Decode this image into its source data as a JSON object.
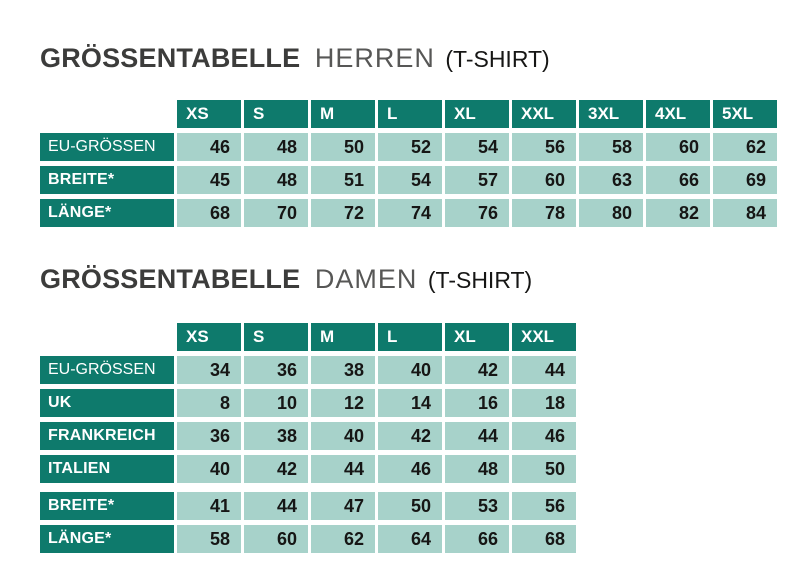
{
  "colors": {
    "header_bg": "#0e7a6c",
    "cell_bg": "#a7d2ca",
    "label_text": "#ffffff",
    "value_text": "#161615",
    "title_bold": "#3c3c3b",
    "title_light": "#575756",
    "title_suffix": "#161615"
  },
  "tables": [
    {
      "title": {
        "bold": "GRÖSSENTABELLE",
        "light": "HERREN",
        "suffix": "(T-SHIRT)"
      },
      "columns": [
        "XS",
        "S",
        "M",
        "L",
        "XL",
        "XXL",
        "3XL",
        "4XL",
        "5XL"
      ],
      "rows": [
        {
          "label": "EU-GRÖSSEN",
          "values": [
            "46",
            "48",
            "50",
            "52",
            "54",
            "56",
            "58",
            "60",
            "62"
          ]
        },
        {
          "label": "BREITE*",
          "values": [
            "45",
            "48",
            "51",
            "54",
            "57",
            "60",
            "63",
            "66",
            "69"
          ]
        },
        {
          "label": "LÄNGE*",
          "values": [
            "68",
            "70",
            "72",
            "74",
            "76",
            "78",
            "80",
            "82",
            "84"
          ]
        }
      ]
    },
    {
      "title": {
        "bold": "GRÖSSENTABELLE",
        "light": "DAMEN",
        "suffix": "(T-SHIRT)"
      },
      "columns": [
        "XS",
        "S",
        "M",
        "L",
        "XL",
        "XXL"
      ],
      "rows": [
        {
          "label": "EU-GRÖSSEN",
          "values": [
            "34",
            "36",
            "38",
            "40",
            "42",
            "44"
          ]
        },
        {
          "label": "UK",
          "values": [
            "8",
            "10",
            "12",
            "14",
            "16",
            "18"
          ]
        },
        {
          "label": "FRANKREICH",
          "values": [
            "36",
            "38",
            "40",
            "42",
            "44",
            "46"
          ]
        },
        {
          "label": "ITALIEN",
          "values": [
            "40",
            "42",
            "44",
            "46",
            "48",
            "50"
          ]
        },
        {
          "label": "BREITE*",
          "values": [
            "41",
            "44",
            "47",
            "50",
            "53",
            "56"
          ]
        },
        {
          "label": "LÄNGE*",
          "values": [
            "58",
            "60",
            "62",
            "64",
            "66",
            "68"
          ]
        }
      ]
    }
  ]
}
